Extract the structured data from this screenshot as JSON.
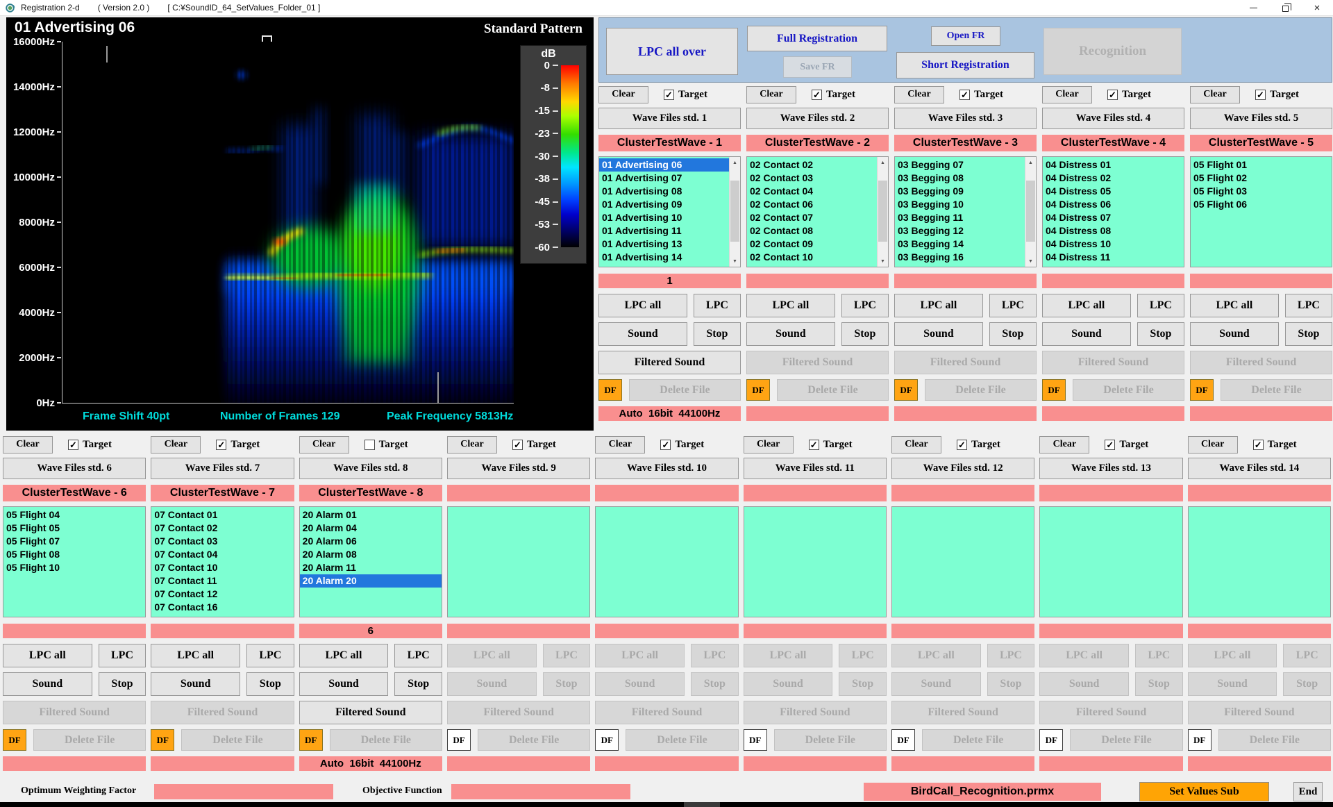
{
  "window": {
    "app_title": "Registration 2-d",
    "version": "( Version 2.0 )",
    "path": "[ C:¥SoundID_64_SetValues_Folder_01 ]"
  },
  "spectrogram": {
    "title": "01 Advertising 06",
    "pattern_label": "Standard Pattern",
    "freq_labels": [
      "16000Hz",
      "14000Hz",
      "12000Hz",
      "10000Hz",
      "8000Hz",
      "6000Hz",
      "4000Hz",
      "2000Hz",
      "0Hz"
    ],
    "colorbar": {
      "unit": "dB",
      "ticks": [
        "0",
        "-8",
        "-15",
        "-23",
        "-30",
        "-38",
        "-45",
        "-53",
        "-60"
      ]
    },
    "footer": {
      "frame_shift": "Frame Shift 40pt",
      "num_frames": "Number of Frames 129",
      "peak_freq": "Peak Frequency 5813Hz"
    }
  },
  "toolbar": {
    "lpc_all_over": "LPC all over",
    "full_registration": "Full Registration",
    "save_fr": "Save FR",
    "open_fr": "Open FR",
    "short_registration": "Short Registration",
    "recognition": "Recognition"
  },
  "common": {
    "clear": "Clear",
    "target": "Target",
    "lpc_all": "LPC all",
    "lpc": "LPC",
    "sound": "Sound",
    "stop": "Stop",
    "filtered_sound": "Filtered Sound",
    "df": "DF",
    "delete_file": "Delete File",
    "check_glyph": "✓",
    "up_glyph": "▲",
    "down_glyph": "▼"
  },
  "colors": {
    "accent_pink": "#f98f8f",
    "list_green": "#7dffd2",
    "selection_blue": "#2277dd",
    "toolbar_blue": "#a9c4e0",
    "df_orange": "#ffa413"
  },
  "panels": [
    {
      "wave_label": "Wave Files std. 1",
      "cluster_label": "ClusterTestWave - 1",
      "target_checked": true,
      "scrollbar": true,
      "items": [
        "01 Advertising 06",
        "01 Advertising 07",
        "01 Advertising 08",
        "01 Advertising 09",
        "01 Advertising 10",
        "01 Advertising 11",
        "01 Advertising 13",
        "01 Advertising 14"
      ],
      "selected_index": 0,
      "count_text": "1",
      "format_text": "Auto  16bit  44100Hz",
      "buttons_enabled": true,
      "filtered_enabled": true,
      "df_orange": true
    },
    {
      "wave_label": "Wave Files std. 2",
      "cluster_label": "ClusterTestWave - 2",
      "target_checked": true,
      "scrollbar": true,
      "items": [
        "02 Contact 02",
        "02 Contact 03",
        "02 Contact 04",
        "02 Contact 06",
        "02 Contact 07",
        "02 Contact 08",
        "02 Contact 09",
        "02 Contact 10"
      ],
      "selected_index": -1,
      "count_text": "",
      "format_text": "",
      "buttons_enabled": true,
      "filtered_enabled": false,
      "df_orange": true
    },
    {
      "wave_label": "Wave Files std. 3",
      "cluster_label": "ClusterTestWave - 3",
      "target_checked": true,
      "scrollbar": true,
      "items": [
        "03 Begging 07",
        "03 Begging 08",
        "03 Begging 09",
        "03 Begging 10",
        "03 Begging 11",
        "03 Begging 12",
        "03 Begging 14",
        "03 Begging 16"
      ],
      "selected_index": -1,
      "count_text": "",
      "format_text": "",
      "buttons_enabled": true,
      "filtered_enabled": false,
      "df_orange": true
    },
    {
      "wave_label": "Wave Files std. 4",
      "cluster_label": "ClusterTestWave - 4",
      "target_checked": true,
      "scrollbar": false,
      "items": [
        "04 Distress 01",
        "04 Distress 02",
        "04 Distress 05",
        "04 Distress 06",
        "04 Distress 07",
        "04 Distress 08",
        "04 Distress 10",
        "04 Distress 11"
      ],
      "selected_index": -1,
      "count_text": "",
      "format_text": "",
      "buttons_enabled": true,
      "filtered_enabled": false,
      "df_orange": true
    },
    {
      "wave_label": "Wave Files std. 5",
      "cluster_label": "ClusterTestWave - 5",
      "target_checked": true,
      "scrollbar": false,
      "items": [
        "05 Flight 01",
        "05 Flight 02",
        "05 Flight 03",
        "05 Flight 06"
      ],
      "selected_index": -1,
      "count_text": "",
      "format_text": "",
      "buttons_enabled": true,
      "filtered_enabled": false,
      "df_orange": true
    },
    {
      "wave_label": "Wave Files std. 6",
      "cluster_label": "ClusterTestWave - 6",
      "target_checked": true,
      "scrollbar": false,
      "items": [
        "05 Flight 04",
        "05 Flight 05",
        "05 Flight 07",
        "05 Flight 08",
        "05 Flight 10"
      ],
      "selected_index": -1,
      "count_text": "",
      "format_text": "",
      "buttons_enabled": true,
      "filtered_enabled": false,
      "df_orange": true
    },
    {
      "wave_label": "Wave Files std. 7",
      "cluster_label": "ClusterTestWave - 7",
      "target_checked": true,
      "scrollbar": false,
      "items": [
        "07 Contact 01",
        "07 Contact 02",
        "07 Contact 03",
        "07 Contact 04",
        "07 Contact 10",
        "07 Contact 11",
        "07 Contact 12",
        "07 Contact 16"
      ],
      "selected_index": -1,
      "count_text": "",
      "format_text": "",
      "buttons_enabled": true,
      "filtered_enabled": false,
      "df_orange": true
    },
    {
      "wave_label": "Wave Files std. 8",
      "cluster_label": "ClusterTestWave - 8",
      "target_checked": false,
      "scrollbar": false,
      "items": [
        "20 Alarm 01",
        "20 Alarm 04",
        "20 Alarm 06",
        "20 Alarm 08",
        "20 Alarm 11",
        "20 Alarm 20"
      ],
      "selected_index": 5,
      "count_text": "6",
      "format_text": "Auto  16bit  44100Hz",
      "buttons_enabled": true,
      "filtered_enabled": true,
      "df_orange": true
    },
    {
      "wave_label": "Wave Files std. 9",
      "cluster_label": "",
      "target_checked": true,
      "scrollbar": false,
      "items": [],
      "selected_index": -1,
      "count_text": "",
      "format_text": "",
      "buttons_enabled": false,
      "filtered_enabled": false,
      "df_orange": false
    },
    {
      "wave_label": "Wave Files std. 10",
      "cluster_label": "",
      "target_checked": true,
      "scrollbar": false,
      "items": [],
      "selected_index": -1,
      "count_text": "",
      "format_text": "",
      "buttons_enabled": false,
      "filtered_enabled": false,
      "df_orange": false
    },
    {
      "wave_label": "Wave Files std. 11",
      "cluster_label": "",
      "target_checked": true,
      "scrollbar": false,
      "items": [],
      "selected_index": -1,
      "count_text": "",
      "format_text": "",
      "buttons_enabled": false,
      "filtered_enabled": false,
      "df_orange": false
    },
    {
      "wave_label": "Wave Files std. 12",
      "cluster_label": "",
      "target_checked": true,
      "scrollbar": false,
      "items": [],
      "selected_index": -1,
      "count_text": "",
      "format_text": "",
      "buttons_enabled": false,
      "filtered_enabled": false,
      "df_orange": false
    },
    {
      "wave_label": "Wave Files std. 13",
      "cluster_label": "",
      "target_checked": true,
      "scrollbar": false,
      "items": [],
      "selected_index": -1,
      "count_text": "",
      "format_text": "",
      "buttons_enabled": false,
      "filtered_enabled": false,
      "df_orange": false
    },
    {
      "wave_label": "Wave Files std. 14",
      "cluster_label": "",
      "target_checked": true,
      "scrollbar": false,
      "items": [],
      "selected_index": -1,
      "count_text": "",
      "format_text": "",
      "buttons_enabled": false,
      "filtered_enabled": false,
      "df_orange": false
    }
  ],
  "footer_bar": {
    "owf_label": "Optimum Weighting Factor",
    "objective_label": "Objective Function",
    "prmx_file": "BirdCall_Recognition.prmx",
    "set_values": "Set Values Sub",
    "end": "End"
  }
}
